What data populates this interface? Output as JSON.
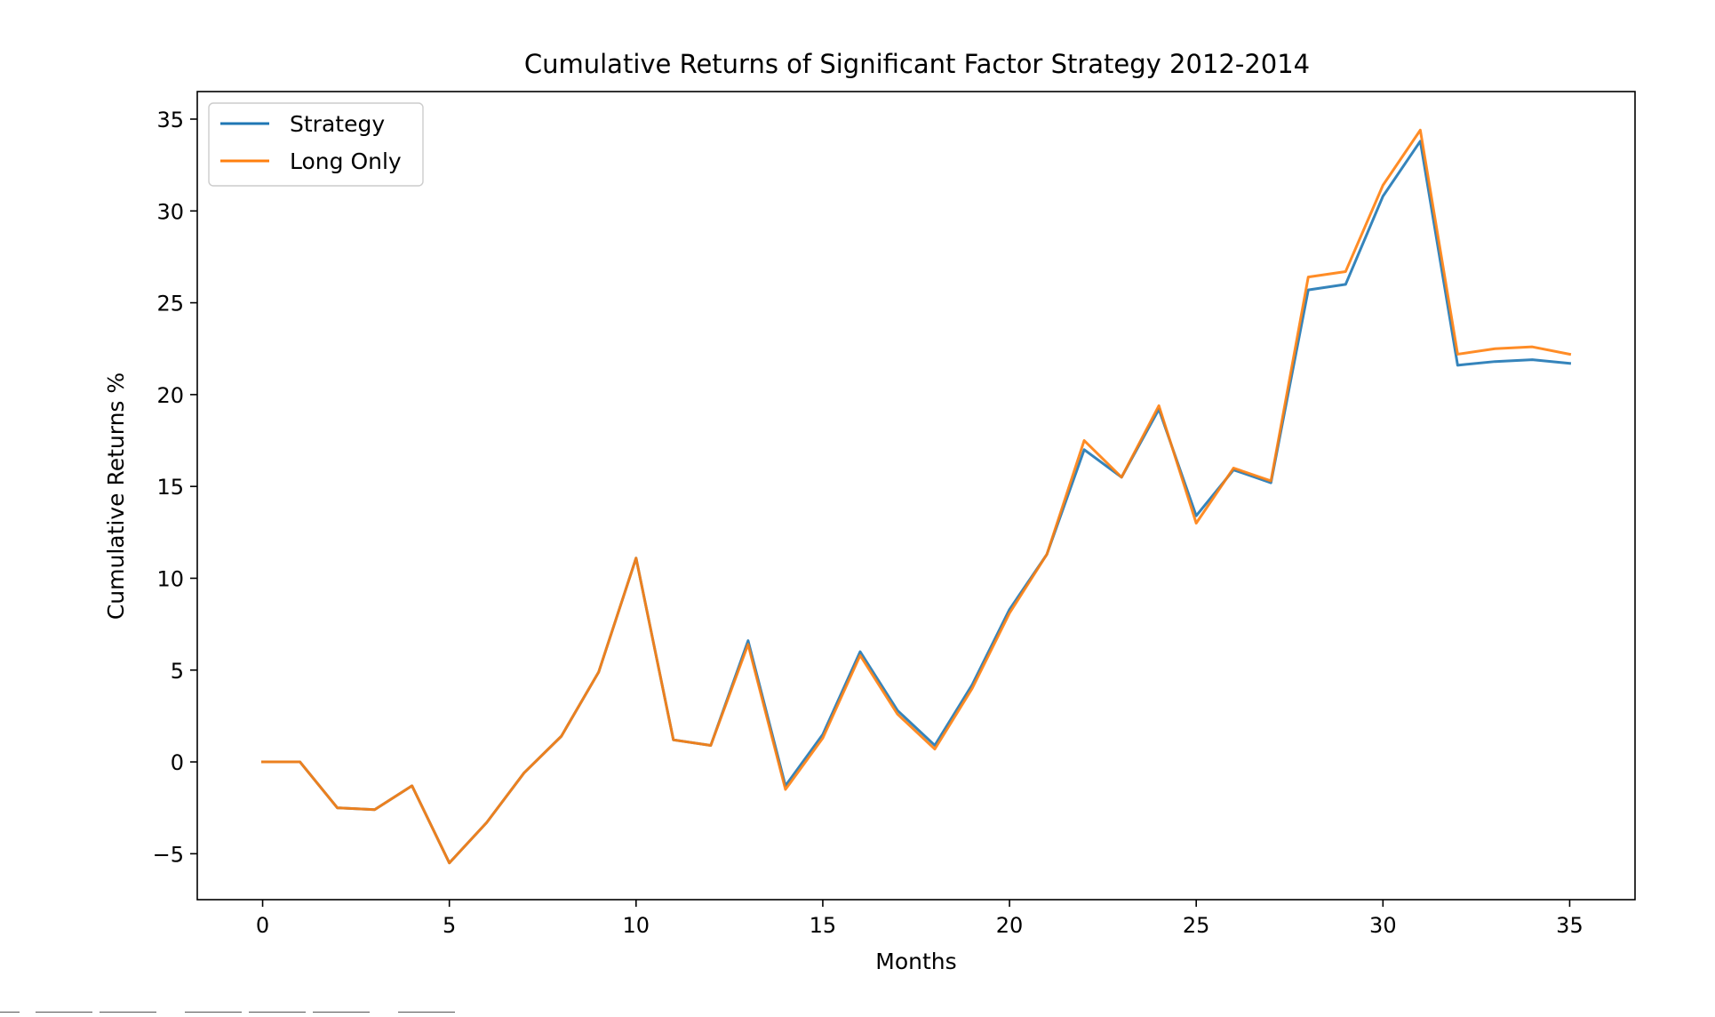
{
  "chart_data": {
    "type": "line",
    "title": "Cumulative Returns of Significant Factor Strategy 2012-2014",
    "xlabel": "Months",
    "ylabel": "Cumulative Returns %",
    "xlim": [
      -1.75,
      36.75
    ],
    "ylim": [
      -7.5,
      36.5
    ],
    "xticks": [
      0,
      5,
      10,
      15,
      20,
      25,
      30,
      35
    ],
    "yticks": [
      -5,
      0,
      5,
      10,
      15,
      20,
      25,
      30,
      35
    ],
    "xtick_labels": [
      "0",
      "5",
      "10",
      "15",
      "20",
      "25",
      "30",
      "35"
    ],
    "ytick_labels": [
      "−5",
      "0",
      "5",
      "10",
      "15",
      "20",
      "25",
      "30",
      "35"
    ],
    "grid": false,
    "legend_position": "upper-left",
    "x": [
      0,
      1,
      2,
      3,
      4,
      5,
      6,
      7,
      8,
      9,
      10,
      11,
      12,
      13,
      14,
      15,
      16,
      17,
      18,
      19,
      20,
      21,
      22,
      23,
      24,
      25,
      26,
      27,
      28,
      29,
      30,
      31,
      32,
      33,
      34,
      35
    ],
    "series": [
      {
        "name": "Strategy",
        "color": "#1f77b4",
        "values": [
          0,
          0,
          -2.5,
          -2.6,
          -1.3,
          -5.5,
          -3.3,
          -0.6,
          1.4,
          4.9,
          11.1,
          1.2,
          0.9,
          6.6,
          -1.3,
          1.5,
          6.0,
          2.8,
          0.9,
          4.2,
          8.3,
          11.3,
          17.0,
          15.5,
          19.2,
          13.4,
          15.9,
          15.2,
          25.7,
          26.0,
          30.8,
          33.8,
          21.6,
          21.8,
          21.9,
          21.7
        ]
      },
      {
        "name": "Long Only",
        "color": "#ff7f0e",
        "values": [
          0,
          0,
          -2.5,
          -2.6,
          -1.3,
          -5.5,
          -3.3,
          -0.6,
          1.4,
          4.9,
          11.1,
          1.2,
          0.9,
          6.4,
          -1.5,
          1.3,
          5.8,
          2.6,
          0.7,
          4.0,
          8.1,
          11.3,
          17.5,
          15.5,
          19.4,
          13.0,
          16.0,
          15.3,
          26.4,
          26.7,
          31.4,
          34.4,
          22.2,
          22.5,
          22.6,
          22.2
        ]
      }
    ]
  }
}
